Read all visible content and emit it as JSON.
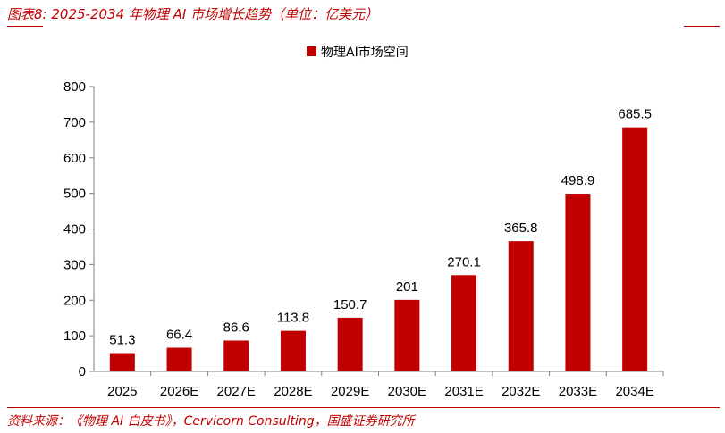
{
  "header": {
    "figure_title": "图表8:  2025-2034 年物理 AI 市场增长趋势（单位：亿美元）"
  },
  "footer": {
    "source": "资料来源：《物理 AI 白皮书》，Cervicorn Consulting，国盛证券研究所"
  },
  "colors": {
    "accent": "#c00000",
    "bar": "#c00000",
    "axis": "#808080"
  },
  "chart_data": {
    "type": "bar",
    "title": "",
    "xlabel": "",
    "ylabel": "",
    "legend_position": "top-center",
    "grid": false,
    "categories": [
      "2025",
      "2026E",
      "2027E",
      "2028E",
      "2029E",
      "2030E",
      "2031E",
      "2032E",
      "2033E",
      "2034E"
    ],
    "series": [
      {
        "name": "物理AI市场空间",
        "values": [
          51.3,
          66.4,
          86.6,
          113.8,
          150.7,
          201,
          270.1,
          365.8,
          498.9,
          685.5
        ]
      }
    ],
    "ylim": [
      0,
      800
    ],
    "yticks": [
      0,
      100,
      200,
      300,
      400,
      500,
      600,
      700,
      800
    ]
  }
}
